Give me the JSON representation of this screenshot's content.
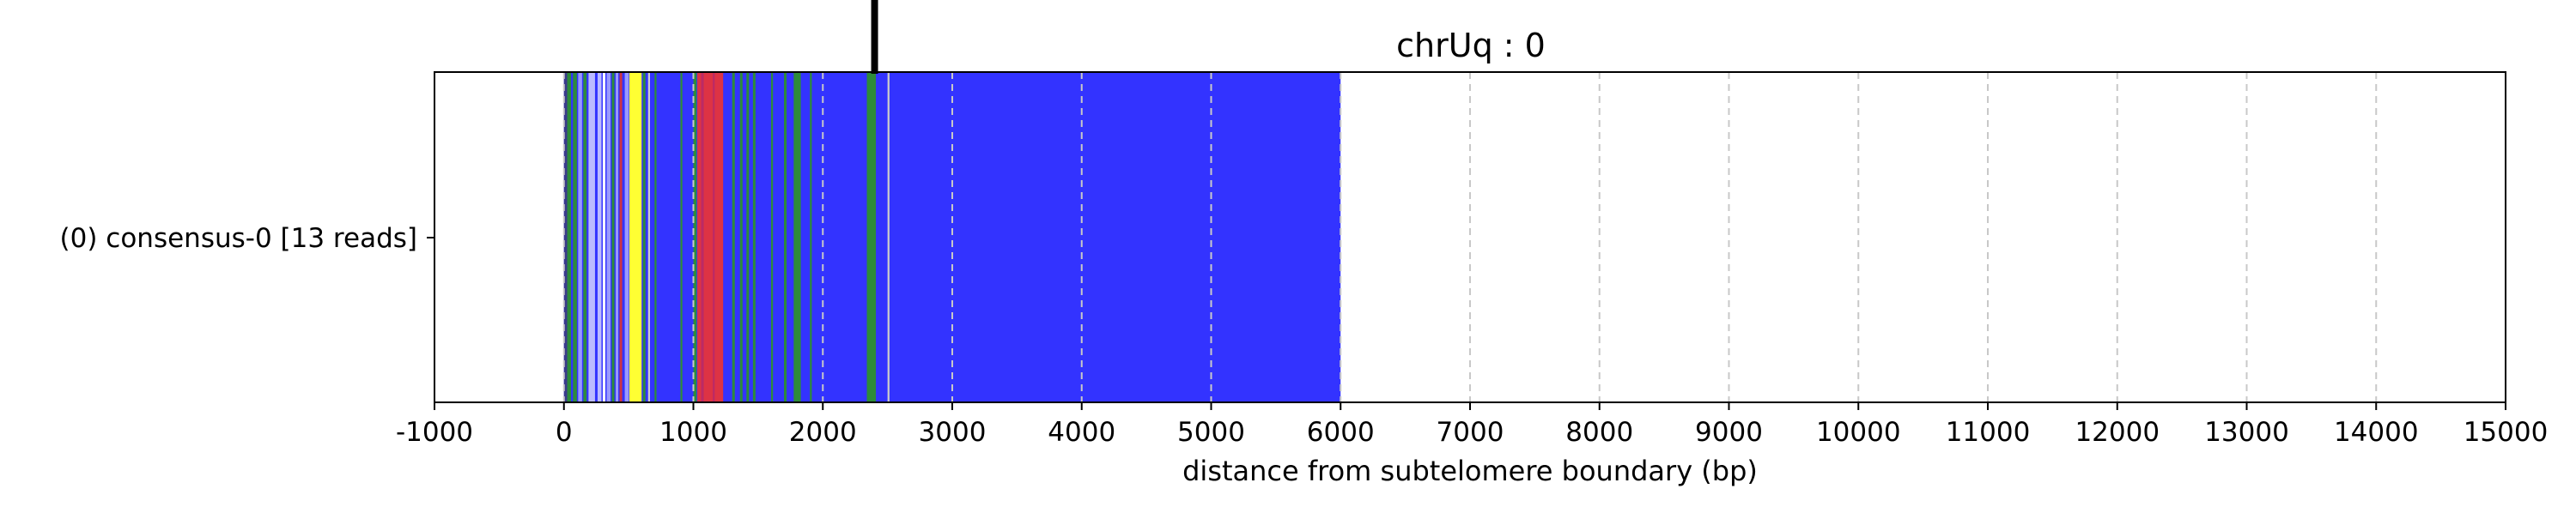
{
  "chart_data": {
    "type": "bar",
    "orientation": "horizontal",
    "title": "chrUq : 0",
    "xlabel": "distance from subtelomere boundary (bp)",
    "ylabel": "",
    "xlim": [
      -1000,
      15000
    ],
    "x_ticks": [
      -1000,
      0,
      1000,
      2000,
      3000,
      4000,
      5000,
      6000,
      7000,
      8000,
      9000,
      10000,
      11000,
      12000,
      13000,
      14000,
      15000
    ],
    "grid": "vertical dashed",
    "track_label": "(0) consensus-0 [13 reads]",
    "marker_position": 2400,
    "base_color": "#3333ff",
    "segments": [
      {
        "start": 0,
        "end": 6000,
        "color": "#3333ff"
      },
      {
        "start": 0,
        "end": 25,
        "color": "#3a3a8a"
      },
      {
        "start": 25,
        "end": 55,
        "color": "#2e8b3a"
      },
      {
        "start": 70,
        "end": 100,
        "color": "#2e8b3a"
      },
      {
        "start": 110,
        "end": 140,
        "color": "#9999ff"
      },
      {
        "start": 150,
        "end": 175,
        "color": "#2e8b3a"
      },
      {
        "start": 190,
        "end": 240,
        "color": "#bbbbff"
      },
      {
        "start": 260,
        "end": 290,
        "color": "#bbbbff"
      },
      {
        "start": 300,
        "end": 320,
        "color": "#ffffff"
      },
      {
        "start": 330,
        "end": 360,
        "color": "#9999ff"
      },
      {
        "start": 370,
        "end": 390,
        "color": "#2e8b3a"
      },
      {
        "start": 400,
        "end": 420,
        "color": "#9999ff"
      },
      {
        "start": 430,
        "end": 450,
        "color": "#cc3344"
      },
      {
        "start": 470,
        "end": 500,
        "color": "#9999ff"
      },
      {
        "start": 505,
        "end": 600,
        "color": "#ffff33"
      },
      {
        "start": 610,
        "end": 630,
        "color": "#2e8b3a"
      },
      {
        "start": 650,
        "end": 665,
        "color": "#cccccc"
      },
      {
        "start": 700,
        "end": 715,
        "color": "#2e8b3a"
      },
      {
        "start": 900,
        "end": 915,
        "color": "#2e8b3a"
      },
      {
        "start": 1000,
        "end": 1025,
        "color": "#2e8b3a"
      },
      {
        "start": 1030,
        "end": 1230,
        "color": "#dd3344"
      },
      {
        "start": 1060,
        "end": 1080,
        "color": "#bb2a66"
      },
      {
        "start": 1150,
        "end": 1165,
        "color": "#bb2a66"
      },
      {
        "start": 1300,
        "end": 1320,
        "color": "#2e8b3a"
      },
      {
        "start": 1360,
        "end": 1380,
        "color": "#2e8b3a"
      },
      {
        "start": 1410,
        "end": 1430,
        "color": "#2e8b3a"
      },
      {
        "start": 1460,
        "end": 1480,
        "color": "#2e8b3a"
      },
      {
        "start": 1600,
        "end": 1615,
        "color": "#2e8b3a"
      },
      {
        "start": 1700,
        "end": 1720,
        "color": "#2e8b3a"
      },
      {
        "start": 1775,
        "end": 1830,
        "color": "#2e8b3a"
      },
      {
        "start": 1900,
        "end": 1915,
        "color": "#2e8b3a"
      },
      {
        "start": 2340,
        "end": 2410,
        "color": "#2e8b3a"
      },
      {
        "start": 2500,
        "end": 2515,
        "color": "#cccccc"
      }
    ]
  }
}
